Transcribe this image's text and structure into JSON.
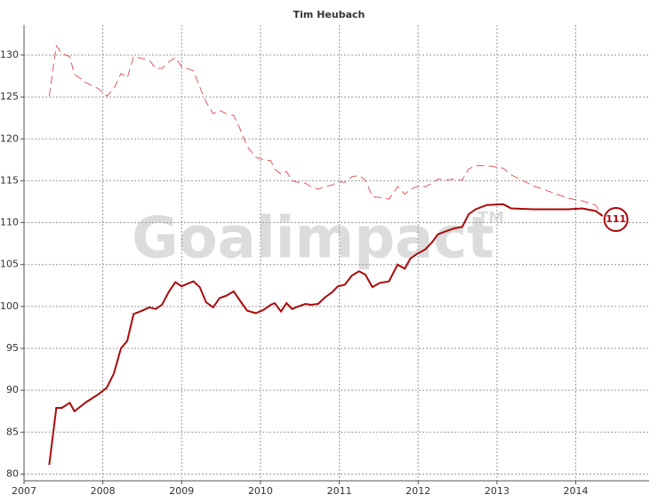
{
  "chart_data": {
    "type": "line",
    "title": "Tim Heubach",
    "watermark": "Goalimpact",
    "watermark_mark": "TM",
    "end_label": "111",
    "x": [
      2007.32,
      2007.41,
      2007.48,
      2007.58,
      2007.64,
      2007.79,
      2007.94,
      2008.05,
      2008.14,
      2008.23,
      2008.31,
      2008.39,
      2008.5,
      2008.59,
      2008.67,
      2008.75,
      2008.84,
      2008.92,
      2009.0,
      2009.07,
      2009.15,
      2009.23,
      2009.31,
      2009.4,
      2009.48,
      2009.57,
      2009.66,
      2009.74,
      2009.83,
      2009.94,
      2010.04,
      2010.13,
      2010.18,
      2010.26,
      2010.33,
      2010.4,
      2010.48,
      2010.57,
      2010.64,
      2010.73,
      2010.82,
      2010.91,
      2010.98,
      2011.07,
      2011.16,
      2011.25,
      2011.33,
      2011.42,
      2011.51,
      2011.63,
      2011.74,
      2011.83,
      2011.9,
      2011.99,
      2012.09,
      2012.18,
      2012.25,
      2012.36,
      2012.45,
      2012.56,
      2012.64,
      2012.73,
      2012.87,
      2013.08,
      2013.18,
      2013.46,
      2013.91,
      2014.08,
      2014.25,
      2014.34
    ],
    "series": [
      {
        "color": "#e05a5a",
        "dashed": true,
        "width": 1,
        "values": [
          125.1,
          131.1,
          130.2,
          129.8,
          127.7,
          126.7,
          126,
          125.1,
          126,
          127.8,
          127.3,
          129.8,
          129.6,
          129.4,
          128.4,
          128.4,
          129.2,
          129.7,
          128.6,
          128.4,
          128.1,
          126.2,
          124.4,
          123,
          123.4,
          123,
          122.8,
          121.2,
          119.1,
          117.8,
          117.5,
          117.4,
          116.4,
          115.8,
          116.1,
          115,
          114.8,
          114.7,
          114.3,
          114,
          114.3,
          114.5,
          114.9,
          114.8,
          115.5,
          115.6,
          115.1,
          113.1,
          113,
          112.8,
          114.3,
          113.4,
          114,
          114.3,
          114.3,
          114.7,
          115.2,
          115.1,
          115.2,
          115.1,
          116.4,
          116.8,
          116.8,
          116.5,
          115.7,
          114.4,
          112.9,
          112.6,
          112.1,
          110.8
        ]
      },
      {
        "color": "#aa0a0a",
        "dashed": false,
        "width": 2,
        "values": [
          81.1,
          87.9,
          87.9,
          88.5,
          87.5,
          88.6,
          89.5,
          90.3,
          92,
          95,
          95.9,
          99.1,
          99.5,
          99.9,
          99.7,
          100.2,
          101.8,
          102.9,
          102.4,
          102.7,
          103,
          102.3,
          100.5,
          99.9,
          101,
          101.3,
          101.8,
          100.7,
          99.5,
          99.2,
          99.6,
          100.2,
          100.4,
          99.4,
          100.4,
          99.7,
          100,
          100.3,
          100.2,
          100.3,
          101.1,
          101.7,
          102.4,
          102.6,
          103.7,
          104.2,
          103.8,
          102.3,
          102.8,
          103,
          105,
          104.5,
          105.7,
          106.3,
          106.8,
          107.7,
          108.6,
          109,
          109.3,
          109.5,
          111,
          111.6,
          112.1,
          112.2,
          111.7,
          111.6,
          111.6,
          111.7,
          111.4,
          110.8
        ]
      }
    ],
    "xlim": [
      2007,
      2014.93
    ],
    "xticks": [
      2007,
      2008,
      2009,
      2010,
      2011,
      2012,
      2013,
      2014
    ],
    "ylim": [
      79.2,
      133.6
    ],
    "yticks": [
      80,
      85,
      90,
      95,
      100,
      105,
      110,
      115,
      120,
      125,
      130
    ],
    "grid": true
  }
}
